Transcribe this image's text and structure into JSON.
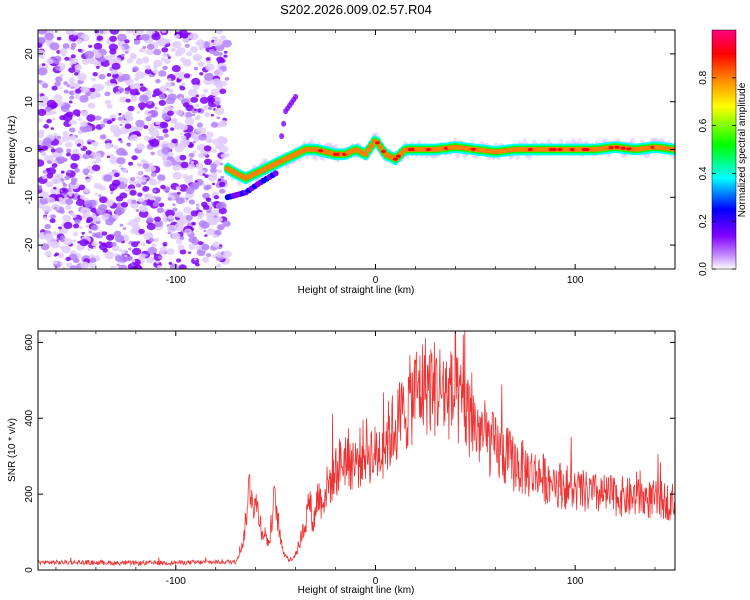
{
  "title": "S202.2026.009.02.57.R04",
  "chart_data": [
    {
      "type": "heatmap",
      "name": "spectrogram",
      "xlabel": "Height of straight line (km)",
      "ylabel": "Frequency (Hz)",
      "xlim": [
        -169,
        150
      ],
      "ylim": [
        -25,
        25
      ],
      "xticks": [
        -100,
        0,
        100
      ],
      "yticks": [
        -20,
        -10,
        0,
        10,
        20
      ],
      "colorbar": {
        "label": "Normalized spectral amplitude",
        "range": [
          0,
          1
        ],
        "ticks": [
          0.0,
          0.2,
          0.4,
          0.6,
          0.8
        ],
        "colors": [
          "#ffffff",
          "#cc99ff",
          "#7f00ff",
          "#0000ff",
          "#00ffff",
          "#00ff00",
          "#ffff00",
          "#ff7f00",
          "#ff0000",
          "#ff0080"
        ]
      },
      "noise_region": {
        "x": [
          -169,
          -74
        ],
        "y": [
          -25,
          25
        ],
        "level": 0.1
      },
      "signal_trace": {
        "x": [
          -74,
          -70,
          -65,
          -60,
          -55,
          -50,
          -45,
          -40,
          -35,
          -30,
          -25,
          -20,
          -15,
          -10,
          -5,
          0,
          5,
          10,
          15,
          20,
          30,
          40,
          50,
          60,
          70,
          80,
          90,
          100,
          110,
          120,
          130,
          140,
          150
        ],
        "y": [
          -4,
          -5,
          -6,
          -5,
          -4,
          -3,
          -2,
          -1,
          0,
          0,
          -0.5,
          -1,
          -1,
          0,
          -1,
          2,
          -1,
          -2,
          0,
          0,
          0,
          0.5,
          0,
          -0.5,
          0,
          0,
          0,
          0,
          0,
          0.5,
          0,
          0.5,
          0
        ]
      },
      "secondary_trace": {
        "x": [
          -74,
          -65,
          -58,
          -50,
          -45,
          -40
        ],
        "y": [
          -10,
          -9,
          -7,
          -5,
          8,
          11
        ]
      }
    },
    {
      "type": "line",
      "name": "snr",
      "xlabel": "Height of straight line (km)",
      "ylabel": "SNR (10 * v/v)",
      "xlim": [
        -169,
        150
      ],
      "ylim": [
        0,
        630
      ],
      "xticks": [
        -100,
        0,
        100
      ],
      "yticks": [
        0,
        200,
        400,
        600
      ],
      "color": "#ee3333",
      "x": [
        -169,
        -150,
        -120,
        -90,
        -70,
        -66,
        -63,
        -61,
        -59,
        -57,
        -55,
        -53,
        -51,
        -49,
        -47,
        -45,
        -43,
        -41,
        -39,
        -37,
        -35,
        -33,
        -31,
        -29,
        -27,
        -24,
        -20,
        -15,
        -10,
        -5,
        0,
        5,
        10,
        15,
        20,
        25,
        30,
        35,
        40,
        45,
        50,
        55,
        60,
        70,
        80,
        90,
        100,
        110,
        120,
        130,
        140,
        150
      ],
      "y": [
        20,
        20,
        18,
        20,
        22,
        80,
        230,
        180,
        160,
        110,
        90,
        70,
        190,
        140,
        60,
        40,
        25,
        35,
        55,
        90,
        130,
        180,
        120,
        200,
        180,
        220,
        260,
        300,
        280,
        320,
        300,
        340,
        380,
        420,
        470,
        490,
        480,
        470,
        450,
        420,
        380,
        350,
        320,
        280,
        250,
        230,
        210,
        200,
        195,
        190,
        185,
        180
      ]
    }
  ]
}
